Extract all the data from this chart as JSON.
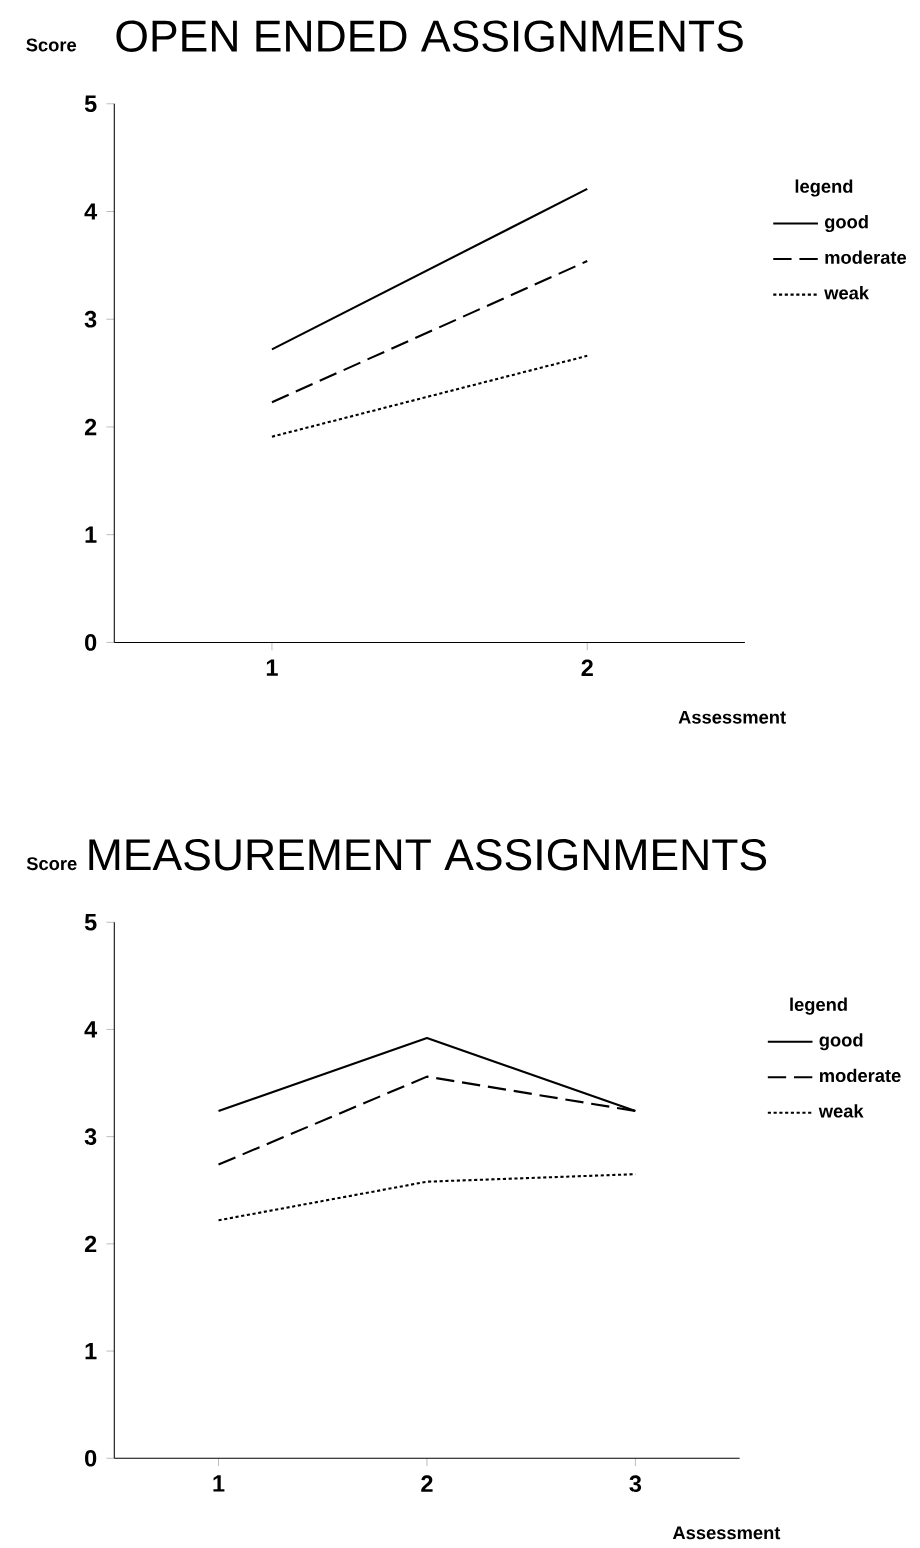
{
  "chart_data": [
    {
      "type": "line",
      "title": "OPEN ENDED ASSIGNMENTS",
      "xlabel": "Assessment",
      "ylabel": "Score",
      "legend_title": "legend",
      "legend": "right",
      "marker": "none",
      "x": [
        1,
        2
      ],
      "xlim": [
        0.5,
        2.5
      ],
      "xticks": [
        1,
        2
      ],
      "ylim": [
        0,
        5
      ],
      "yticks": [
        0,
        1,
        2,
        3,
        4,
        5
      ],
      "series": [
        {
          "name": "good",
          "color": "#000000",
          "line_style": "solid",
          "values": [
            2.72,
            4.21
          ]
        },
        {
          "name": "moderate",
          "color": "#000000",
          "line_style": "dashed",
          "values": [
            2.23,
            3.54
          ]
        },
        {
          "name": "weak",
          "color": "#000000",
          "line_style": "dotted",
          "values": [
            1.91,
            2.66
          ]
        }
      ]
    },
    {
      "type": "line",
      "title": "MEASUREMENT ASSIGNMENTS",
      "xlabel": "Assessment",
      "ylabel": "Score",
      "legend_title": "legend",
      "legend": "right",
      "marker": "none",
      "x": [
        1,
        2,
        3
      ],
      "xlim": [
        0.5,
        3.5
      ],
      "xticks": [
        1,
        2,
        3
      ],
      "ylim": [
        0,
        5
      ],
      "yticks": [
        0,
        1,
        2,
        3,
        4,
        5
      ],
      "series": [
        {
          "name": "good",
          "color": "#000000",
          "line_style": "solid",
          "values": [
            3.24,
            3.92,
            3.24
          ]
        },
        {
          "name": "moderate",
          "color": "#000000",
          "line_style": "dashed",
          "values": [
            2.74,
            3.56,
            3.24
          ]
        },
        {
          "name": "weak",
          "color": "#000000",
          "line_style": "dotted",
          "values": [
            2.22,
            2.58,
            2.65
          ]
        }
      ]
    }
  ]
}
